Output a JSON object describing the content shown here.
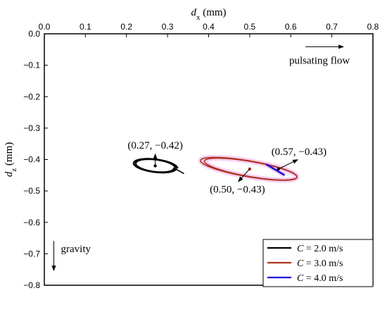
{
  "chart_data": {
    "type": "line",
    "title": "",
    "xlabel": {
      "symbol": "d",
      "subscript": "x",
      "unit": "(mm)"
    },
    "ylabel": {
      "symbol": "d",
      "subscript": "z",
      "unit": "(mm)"
    },
    "xlim": [
      0.0,
      0.8
    ],
    "ylim": [
      -0.8,
      0.0
    ],
    "x_axis_position": "top",
    "x_ticks": [
      "0.0",
      "0.1",
      "0.2",
      "0.3",
      "0.4",
      "0.5",
      "0.6",
      "0.7",
      "0.8"
    ],
    "y_ticks": [
      "0.0",
      "−0.1",
      "−0.2",
      "−0.3",
      "−0.4",
      "−0.5",
      "−0.6",
      "−0.7",
      "−0.8"
    ],
    "grid": false,
    "legend": {
      "placement": "bottom-right",
      "var": "C",
      "equals": " = "
    },
    "series": [
      {
        "name": "2.0 m/s",
        "color": "#000000",
        "shape": "spiral",
        "center": [
          0.27,
          -0.42
        ],
        "semi_axes": [
          0.055,
          0.022
        ],
        "tilt_per_mm": -0.15,
        "loops": 3,
        "tail": [
          0.34,
          -0.445
        ]
      },
      {
        "name": "3.0 m/s",
        "color": "#b0301e",
        "shape": "ellipse",
        "center": [
          0.5,
          -0.43
        ],
        "semi_axes": [
          0.115,
          0.025
        ],
        "tilt_per_mm": -0.22,
        "loops": 3
      },
      {
        "name": "4.0 m/s",
        "color": "#1f10d8",
        "shape": "segment",
        "points": [
          [
            0.54,
            -0.415
          ],
          [
            0.585,
            -0.45
          ]
        ]
      }
    ],
    "annotations": [
      {
        "text": "(0.27, −0.42)",
        "point": [
          0.27,
          -0.42
        ],
        "label_at": [
          0.27,
          -0.365
        ]
      },
      {
        "text": "(0.50, −0.43)",
        "point": [
          0.5,
          -0.43
        ],
        "label_at": [
          0.47,
          -0.505
        ]
      },
      {
        "text": "(0.57, −0.43)",
        "point": [
          0.57,
          -0.43
        ],
        "label_at": [
          0.62,
          -0.385
        ]
      },
      {
        "text": "pulsating flow",
        "label_at": [
          0.67,
          -0.095
        ],
        "arrow_direction": "right"
      },
      {
        "text": "gravity",
        "label_at": [
          0.03,
          -0.695
        ],
        "arrow_direction": "down"
      }
    ]
  }
}
